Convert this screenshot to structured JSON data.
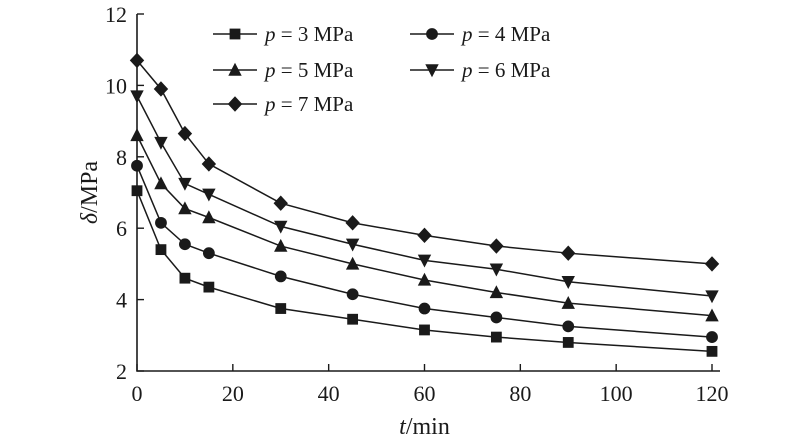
{
  "chart_data": {
    "type": "line",
    "x": [
      0,
      5,
      10,
      15,
      30,
      45,
      60,
      75,
      90,
      120
    ],
    "xlim": [
      0,
      120
    ],
    "ylim": [
      2,
      12
    ],
    "xticks": [
      "0",
      "20",
      "40",
      "60",
      "80",
      "100",
      "120"
    ],
    "yticks": [
      "2",
      "4",
      "6",
      "8",
      "10",
      "12"
    ],
    "xlabel": {
      "var": "t",
      "unit": "/min"
    },
    "ylabel": {
      "var": "δ",
      "unit": "/MPa"
    },
    "grid": false,
    "legend_position": "top-center",
    "color": "#1a1a1a",
    "series": [
      {
        "name_var": "p",
        "name_rest": " = 3 MPa",
        "marker": "square",
        "values": [
          7.05,
          5.4,
          4.6,
          4.35,
          3.75,
          3.45,
          3.15,
          2.95,
          2.8,
          2.55
        ]
      },
      {
        "name_var": "p",
        "name_rest": " = 4 MPa",
        "marker": "circle",
        "values": [
          7.75,
          6.15,
          5.55,
          5.3,
          4.65,
          4.15,
          3.75,
          3.5,
          3.25,
          2.95
        ]
      },
      {
        "name_var": "p",
        "name_rest": " = 5 MPa",
        "marker": "triangle-up",
        "values": [
          8.6,
          7.25,
          6.55,
          6.3,
          5.5,
          5.0,
          4.55,
          4.2,
          3.9,
          3.55
        ]
      },
      {
        "name_var": "p",
        "name_rest": " = 6 MPa",
        "marker": "triangle-down",
        "values": [
          9.7,
          8.4,
          7.25,
          6.95,
          6.05,
          5.55,
          5.1,
          4.85,
          4.5,
          4.1
        ]
      },
      {
        "name_var": "p",
        "name_rest": " = 7 MPa",
        "marker": "diamond",
        "values": [
          10.7,
          9.9,
          8.65,
          7.8,
          6.7,
          6.15,
          5.8,
          5.5,
          5.3,
          5.0
        ]
      }
    ]
  }
}
